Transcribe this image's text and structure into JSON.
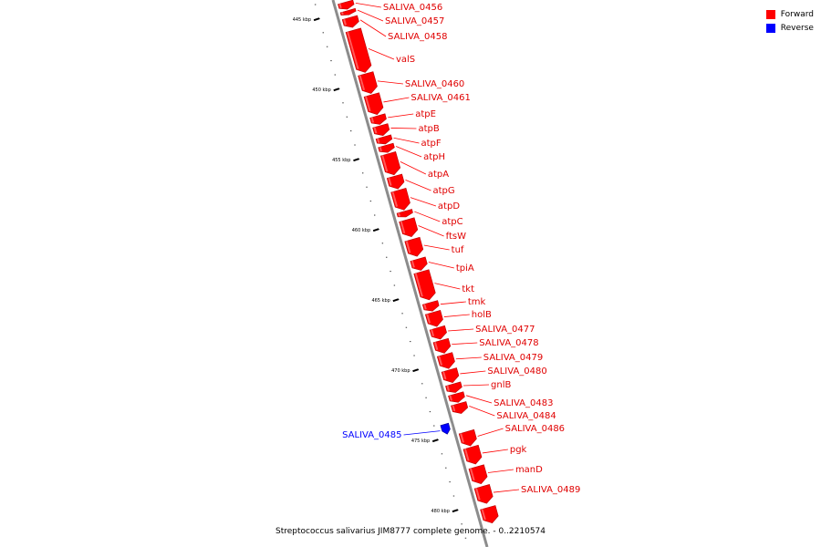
{
  "caption": "Streptococcus salivarius JIM8777 complete genome. - 0..2210574",
  "legend": [
    {
      "label": "Forward",
      "color": "#ff0000"
    },
    {
      "label": "Reverse",
      "color": "#0000ff"
    }
  ],
  "colors": {
    "forward": "#ff0000",
    "forward_dark": "#b80000",
    "reverse": "#0000ff",
    "backbone": "#8c8c8c"
  },
  "ticks": [
    {
      "kbp": 445,
      "label": "445 kbp"
    },
    {
      "kbp": 450,
      "label": "450 kbp"
    },
    {
      "kbp": 455,
      "label": "455 kbp"
    },
    {
      "kbp": 460,
      "label": "460 kbp"
    },
    {
      "kbp": 465,
      "label": "465 kbp"
    },
    {
      "kbp": 470,
      "label": "470 kbp"
    },
    {
      "kbp": 475,
      "label": "475 kbp"
    },
    {
      "kbp": 480,
      "label": "480 kbp"
    }
  ],
  "genes": [
    {
      "name": "SALIVA_0456",
      "strand": "forward",
      "start": 444.4,
      "end": 444.9
    },
    {
      "name": "SALIVA_0457",
      "strand": "forward",
      "start": 445.0,
      "end": 445.3
    },
    {
      "name": "SALIVA_0458",
      "strand": "forward",
      "start": 445.5,
      "end": 446.2
    },
    {
      "name": "valS",
      "strand": "forward",
      "start": 446.4,
      "end": 449.4
    },
    {
      "name": "SALIVA_0460",
      "strand": "forward",
      "start": 449.5,
      "end": 450.9
    },
    {
      "name": "SALIVA_0461",
      "strand": "forward",
      "start": 451.0,
      "end": 452.4
    },
    {
      "name": "atpE",
      "strand": "forward",
      "start": 452.5,
      "end": 453.1
    },
    {
      "name": "atpB",
      "strand": "forward",
      "start": 453.2,
      "end": 453.9
    },
    {
      "name": "atpF",
      "strand": "forward",
      "start": 454.0,
      "end": 454.5
    },
    {
      "name": "atpH",
      "strand": "forward",
      "start": 454.6,
      "end": 455.1
    },
    {
      "name": "atpA",
      "strand": "forward",
      "start": 455.2,
      "end": 456.7
    },
    {
      "name": "atpG",
      "strand": "forward",
      "start": 456.8,
      "end": 457.7
    },
    {
      "name": "atpD",
      "strand": "forward",
      "start": 457.8,
      "end": 459.2
    },
    {
      "name": "atpC",
      "strand": "forward",
      "start": 459.3,
      "end": 459.7
    },
    {
      "name": "ftsW",
      "strand": "forward",
      "start": 459.9,
      "end": 461.1
    },
    {
      "name": "tuf",
      "strand": "forward",
      "start": 461.3,
      "end": 462.5
    },
    {
      "name": "tpiA",
      "strand": "forward",
      "start": 462.7,
      "end": 463.5
    },
    {
      "name": "tkt",
      "strand": "forward",
      "start": 463.6,
      "end": 465.6
    },
    {
      "name": "tmk",
      "strand": "forward",
      "start": 465.8,
      "end": 466.4
    },
    {
      "name": "holB",
      "strand": "forward",
      "start": 466.5,
      "end": 467.5
    },
    {
      "name": "SALIVA_0477",
      "strand": "forward",
      "start": 467.6,
      "end": 468.4
    },
    {
      "name": "SALIVA_0478",
      "strand": "forward",
      "start": 468.5,
      "end": 469.4
    },
    {
      "name": "SALIVA_0479",
      "strand": "forward",
      "start": 469.5,
      "end": 470.5
    },
    {
      "name": "SALIVA_0480",
      "strand": "forward",
      "start": 470.6,
      "end": 471.5
    },
    {
      "name": "gnlB",
      "strand": "forward",
      "start": 471.6,
      "end": 472.2
    },
    {
      "name": "SALIVA_0483",
      "strand": "forward",
      "start": 472.3,
      "end": 472.9
    },
    {
      "name": "SALIVA_0484",
      "strand": "forward",
      "start": 473.0,
      "end": 473.7
    },
    {
      "name": "SALIVA_0485",
      "strand": "reverse",
      "start": 474.1,
      "end": 474.8
    },
    {
      "name": "SALIVA_0486",
      "strand": "forward",
      "start": 475.0,
      "end": 476.0
    },
    {
      "name": "pgk",
      "strand": "forward",
      "start": 476.1,
      "end": 477.3
    },
    {
      "name": "manD",
      "strand": "forward",
      "start": 477.5,
      "end": 478.7
    },
    {
      "name": "SALIVA_0489",
      "strand": "forward",
      "start": 478.9,
      "end": 480.1
    },
    {
      "name": "",
      "strand": "forward",
      "start": 480.4,
      "end": 481.5
    }
  ]
}
